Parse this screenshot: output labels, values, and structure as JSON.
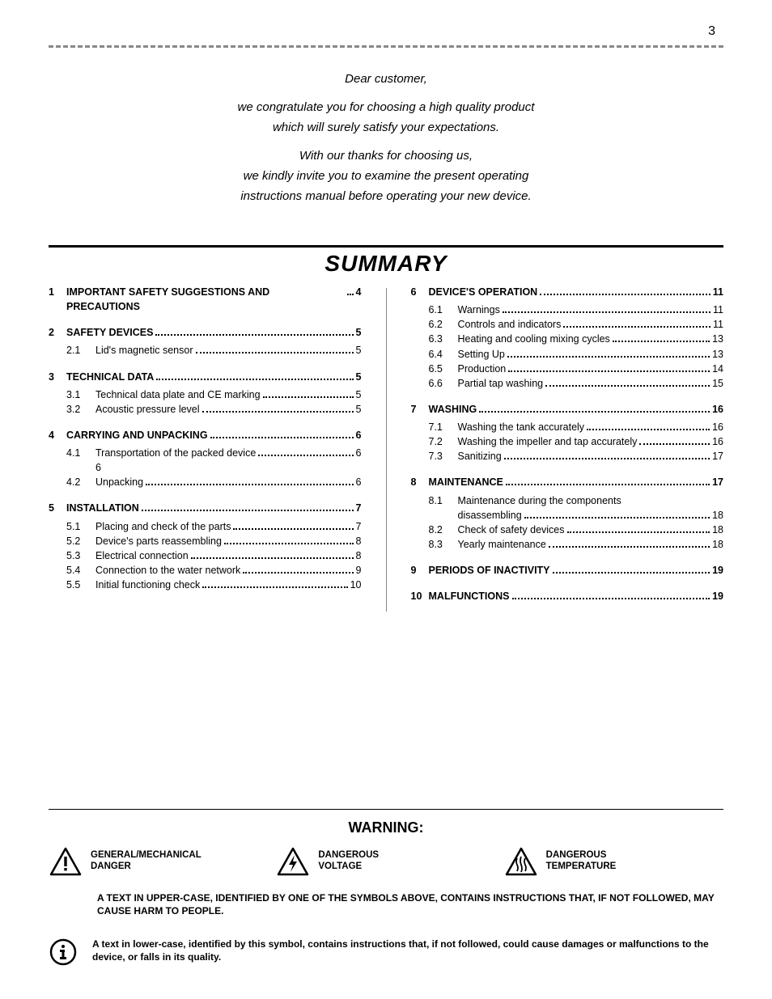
{
  "page_number": "3",
  "intro": {
    "l1": "Dear customer,",
    "l2": "we congratulate you for choosing a high quality product",
    "l3": "which will surely satisfy your expectations.",
    "l4": "With our thanks for choosing us,",
    "l5": "we kindly invite you to examine the present operating",
    "l6": "instructions manual before operating your new device."
  },
  "summary_title": "SUMMARY",
  "toc_left": [
    {
      "num": "1",
      "title": "IMPORTANT SAFETY SUGGESTIONS AND PRECAUTIONS",
      "page": "4",
      "subs": []
    },
    {
      "num": "2",
      "title": "SAFETY DEVICES",
      "page": "5",
      "subs": [
        {
          "snum": "2.1",
          "stitle": "Lid's magnetic sensor",
          "spage": "5"
        }
      ]
    },
    {
      "num": "3",
      "title": "TECHNICAL DATA",
      "page": "5",
      "subs": [
        {
          "snum": "3.1",
          "stitle": "Technical data plate and CE marking",
          "spage": "5"
        },
        {
          "snum": "3.2",
          "stitle": "Acoustic pressure level",
          "spage": "5"
        }
      ]
    },
    {
      "num": "4",
      "title": "CARRYING AND UNPACKING",
      "page": "6",
      "subs": [
        {
          "snum": "4.1",
          "stitle": "Transportation of the packed device",
          "spage": "6",
          "cont": "6"
        },
        {
          "snum": "4.2",
          "stitle": "Unpacking",
          "spage": "6"
        }
      ]
    },
    {
      "num": "5",
      "title": "INSTALLATION",
      "page": "7",
      "subs": [
        {
          "snum": "5.1",
          "stitle": "Placing and check of the parts",
          "spage": "7"
        },
        {
          "snum": "5.2",
          "stitle": "Device's parts reassembling",
          "spage": "8"
        },
        {
          "snum": "5.3",
          "stitle": "Electrical connection",
          "spage": "8"
        },
        {
          "snum": "5.4",
          "stitle": "Connection to the water network",
          "spage": "9"
        },
        {
          "snum": "5.5",
          "stitle": "Initial functioning check",
          "spage": "10"
        }
      ]
    }
  ],
  "toc_right": [
    {
      "num": "6",
      "title": "DEVICE'S OPERATION",
      "page": "11",
      "subs": [
        {
          "snum": "6.1",
          "stitle": "Warnings",
          "spage": "11"
        },
        {
          "snum": "6.2",
          "stitle": "Controls and indicators",
          "spage": "11"
        },
        {
          "snum": "6.3",
          "stitle": "Heating and cooling mixing cycles",
          "spage": "13"
        },
        {
          "snum": "6.4",
          "stitle": "Setting Up",
          "spage": "13"
        },
        {
          "snum": "6.5",
          "stitle": "Production",
          "spage": "14"
        },
        {
          "snum": "6.6",
          "stitle": "Partial tap washing",
          "spage": "15"
        }
      ]
    },
    {
      "num": "7",
      "title": "WASHING",
      "page": "16",
      "subs": [
        {
          "snum": "7.1",
          "stitle": "Washing the tank accurately",
          "spage": "16"
        },
        {
          "snum": "7.2",
          "stitle": "Washing the impeller and tap accurately",
          "spage": "16"
        },
        {
          "snum": "7.3",
          "stitle": "Sanitizing",
          "spage": "17"
        }
      ]
    },
    {
      "num": "8",
      "title": "MAINTENANCE",
      "page": "17",
      "subs": [
        {
          "snum": "8.1",
          "stitle": "Maintenance during the components disassembling",
          "spage": "18",
          "wrap": true
        },
        {
          "snum": "8.2",
          "stitle": "Check of safety devices",
          "spage": "18"
        },
        {
          "snum": "8.3",
          "stitle": "Yearly maintenance",
          "spage": "18"
        }
      ]
    },
    {
      "num": "9",
      "title": "PERIODS OF INACTIVITY",
      "page": "19",
      "subs": []
    },
    {
      "num": "10",
      "title": "MALFUNCTIONS",
      "page": "19",
      "subs": []
    }
  ],
  "warning": {
    "title": "WARNING:",
    "items": [
      {
        "label1": "GENERAL/MECHANICAL",
        "label2": "DANGER"
      },
      {
        "label1": "DANGEROUS",
        "label2": "VOLTAGE"
      },
      {
        "label1": "DANGEROUS",
        "label2": "TEMPERATURE"
      }
    ],
    "text": "A TEXT IN UPPER-CASE, IDENTIFIED BY ONE OF THE SYMBOLS ABOVE, CONTAINS INSTRUCTIONS THAT, IF NOT FOLLOWED, MAY CAUSE HARM TO PEOPLE.",
    "info": "A text in lower-case, identified by this symbol, contains instructions that, if not followed, could cause damages or malfunctions to the device, or falls in its quality."
  }
}
